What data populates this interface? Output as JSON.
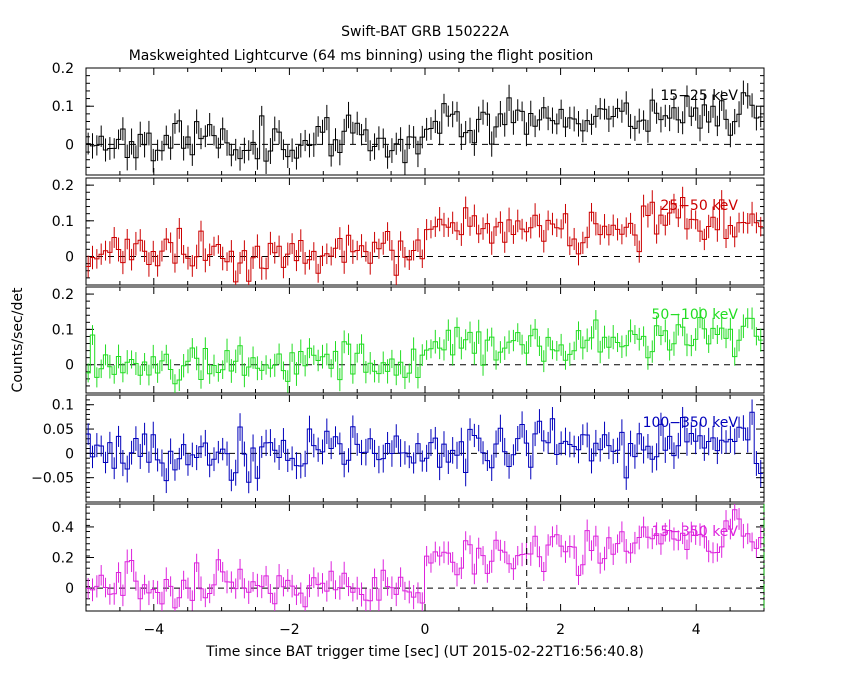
{
  "title_line1": "Swift-BAT GRB 150222A",
  "title_line2": "Maskweighted Lightcurve (64 ms binning) using the flight position",
  "xlabel": "Time since BAT trigger time [sec] (UT 2015-02-22T16:56:40.8)",
  "ylabel": "Counts/sec/det",
  "chart_data": {
    "type": "line",
    "style": "step-with-errorbars",
    "xlim": [
      -5.0,
      5.0
    ],
    "x_ticks": [
      -4,
      -2,
      0,
      2,
      4
    ],
    "x_tick_labels": [
      "−4",
      "−2",
      "0",
      "2",
      "4"
    ],
    "bin_width": 0.064,
    "vertical_markers": [
      {
        "x": 1.5,
        "panel": 4,
        "style": "dashed",
        "color": "#000000"
      },
      {
        "x": 5.0,
        "panel": 4,
        "style": "dash-dot",
        "color": "#00aa00"
      }
    ],
    "panels": [
      {
        "name": "15-25 keV",
        "label": "15−25 keV",
        "color": "#000000",
        "ylim": [
          -0.08,
          0.2
        ],
        "y_ticks": [
          0,
          0.1,
          0.2
        ],
        "y_tick_labels": [
          "0",
          "0.1",
          "0.2"
        ],
        "pre_level": 0.01,
        "post_level": 0.06,
        "end_level": 0.09,
        "noise": 0.028,
        "err": 0.03,
        "seed": 11
      },
      {
        "name": "25-50 keV",
        "label": "25−50 keV",
        "color": "#cc0000",
        "ylim": [
          -0.08,
          0.22
        ],
        "y_ticks": [
          0,
          0.1,
          0.2
        ],
        "y_tick_labels": [
          "0",
          "0.1",
          "0.2"
        ],
        "pre_level": 0.005,
        "post_level": 0.07,
        "end_level": 0.1,
        "noise": 0.03,
        "err": 0.03,
        "seed": 23
      },
      {
        "name": "50-100 keV",
        "label": "50−100 keV",
        "color": "#22dd22",
        "ylim": [
          -0.08,
          0.22
        ],
        "y_ticks": [
          0,
          0.1,
          0.2
        ],
        "y_tick_labels": [
          "0",
          "0.1",
          "0.2"
        ],
        "pre_level": 0.01,
        "post_level": 0.04,
        "end_level": 0.09,
        "noise": 0.03,
        "err": 0.03,
        "seed": 37
      },
      {
        "name": "100-350 keV",
        "label": "100−350 keV",
        "color": "#0000bb",
        "ylim": [
          -0.1,
          0.12
        ],
        "y_ticks": [
          -0.05,
          0,
          0.05,
          0.1
        ],
        "y_tick_labels": [
          "−0.05",
          "0",
          "0.05",
          "0.1"
        ],
        "pre_level": 0.0,
        "post_level": 0.005,
        "end_level": 0.03,
        "noise": 0.028,
        "err": 0.025,
        "seed": 53
      },
      {
        "name": "15-350 keV",
        "label": "15−350 keV",
        "color": "#dd22dd",
        "ylim": [
          -0.15,
          0.55
        ],
        "y_ticks": [
          0,
          0.2,
          0.4
        ],
        "y_tick_labels": [
          "0",
          "0.2",
          "0.4"
        ],
        "pre_level": 0.02,
        "post_level": 0.18,
        "end_level": 0.35,
        "noise": 0.07,
        "err": 0.07,
        "seed": 71
      }
    ]
  }
}
